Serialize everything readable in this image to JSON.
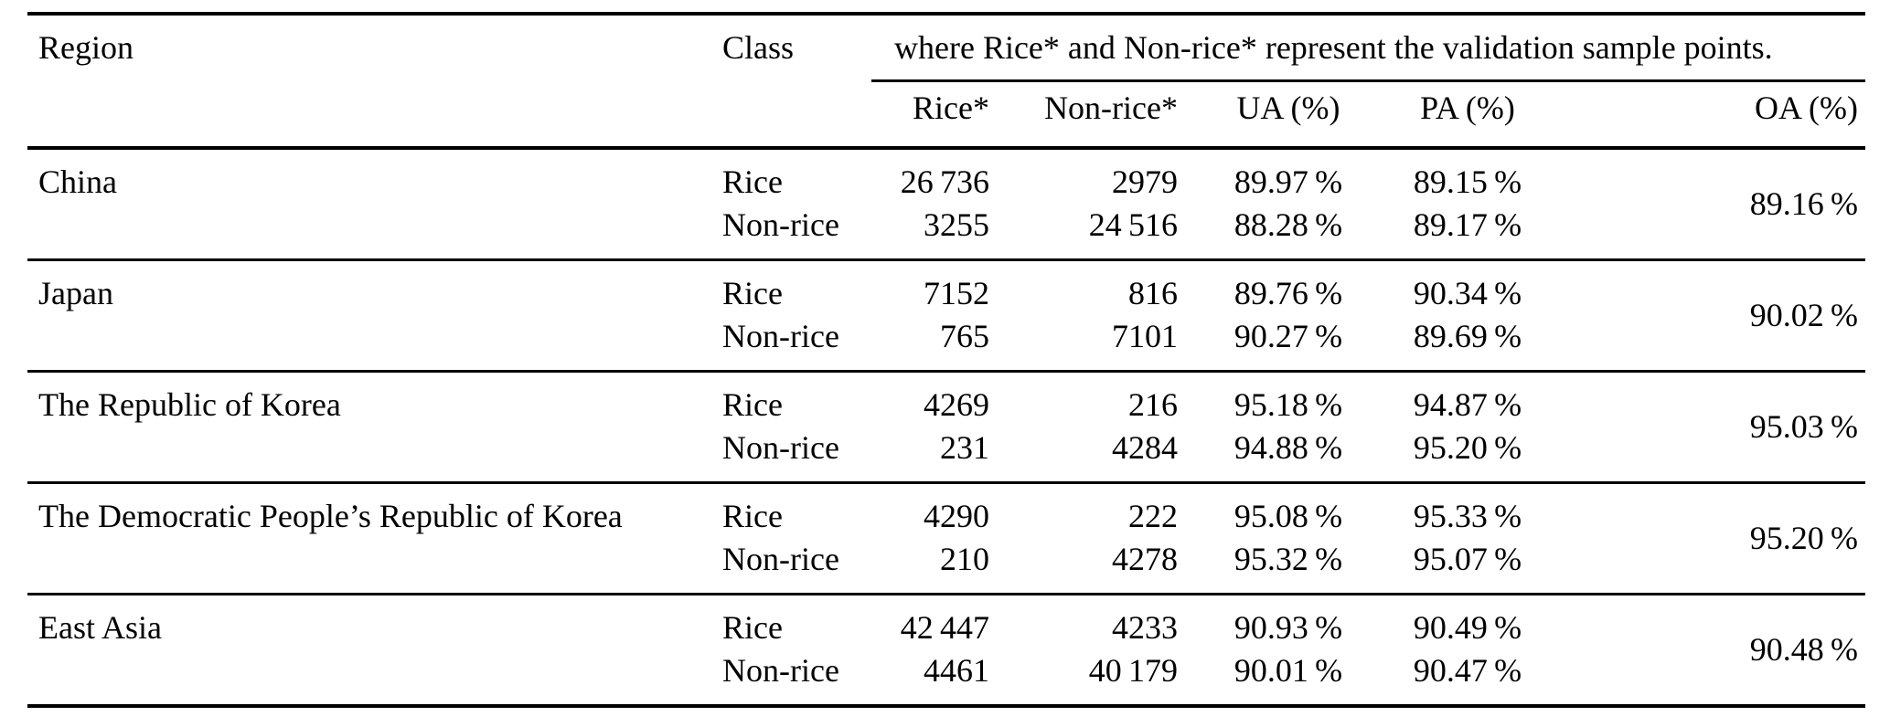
{
  "table": {
    "header": {
      "region": "Region",
      "class_col": "Class",
      "spanner_note": "where Rice* and Non-rice* represent the validation sample points.",
      "rice": "Rice*",
      "non_rice": "Non-rice*",
      "ua": "UA (%)",
      "pa": "PA (%)",
      "oa": "OA (%)"
    },
    "rows": [
      {
        "region": "China",
        "class1": "Rice",
        "class2": "Non-rice",
        "rice1": "26 736",
        "rice2": "3255",
        "non_rice1": "2979",
        "non_rice2": "24 516",
        "ua1": "89.97 %",
        "ua2": "88.28 %",
        "pa1": "89.15 %",
        "pa2": "89.17 %",
        "oa": "89.16 %"
      },
      {
        "region": "Japan",
        "class1": "Rice",
        "class2": "Non-rice",
        "rice1": "7152",
        "rice2": "765",
        "non_rice1": "816",
        "non_rice2": "7101",
        "ua1": "89.76 %",
        "ua2": "90.27 %",
        "pa1": "90.34 %",
        "pa2": "89.69 %",
        "oa": "90.02 %"
      },
      {
        "region": "The Republic of Korea",
        "class1": "Rice",
        "class2": "Non-rice",
        "rice1": "4269",
        "rice2": "231",
        "non_rice1": "216",
        "non_rice2": "4284",
        "ua1": "95.18 %",
        "ua2": "94.88 %",
        "pa1": "94.87 %",
        "pa2": "95.20 %",
        "oa": "95.03 %"
      },
      {
        "region": "The Democratic People’s Republic of Korea",
        "class1": "Rice",
        "class2": "Non-rice",
        "rice1": "4290",
        "rice2": "210",
        "non_rice1": "222",
        "non_rice2": "4278",
        "ua1": "95.08 %",
        "ua2": "95.32 %",
        "pa1": "95.33 %",
        "pa2": "95.07 %",
        "oa": "95.20 %"
      },
      {
        "region": "East Asia",
        "class1": "Rice",
        "class2": "Non-rice",
        "rice1": "42 447",
        "rice2": "4461",
        "non_rice1": "4233",
        "non_rice2": "40 179",
        "ua1": "90.93 %",
        "ua2": "90.01 %",
        "pa1": "90.49 %",
        "pa2": "90.47 %",
        "oa": "90.48 %"
      }
    ]
  }
}
